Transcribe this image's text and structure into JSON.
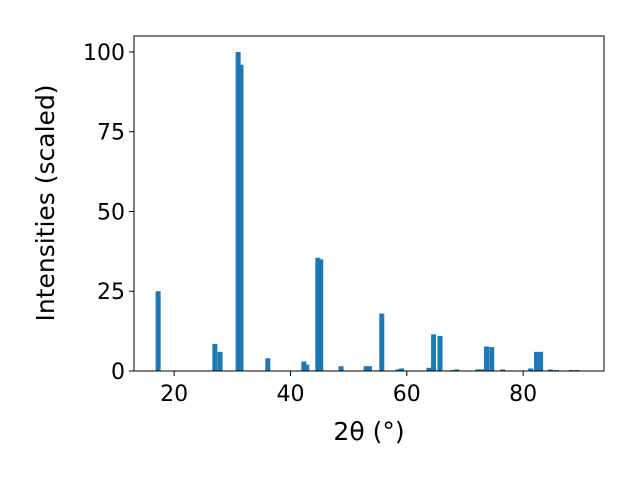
{
  "chart_data": {
    "type": "bar",
    "x_label": "2θ (°)",
    "y_label": "Intensities (scaled)",
    "x": [
      17.25,
      27.0,
      27.9,
      31.0,
      31.5,
      36.1,
      42.3,
      42.8,
      44.7,
      45.2,
      48.7,
      53.0,
      53.6,
      55.7,
      58.5,
      59.1,
      63.8,
      64.6,
      65.7,
      67.9,
      68.6,
      72.2,
      72.9,
      73.7,
      74.6,
      76.5,
      81.3,
      82.3,
      83.0,
      84.7,
      85.7,
      88.3,
      89.3
    ],
    "values": [
      25,
      8.5,
      6,
      100,
      96,
      4,
      3,
      2,
      35.5,
      35,
      1.5,
      1.5,
      1.5,
      18,
      0.5,
      0.8,
      1,
      11.5,
      11,
      0.3,
      0.5,
      0.5,
      0.5,
      7.7,
      7.5,
      0.5,
      0.8,
      6,
      6,
      0.5,
      0.3,
      0.3,
      0.3
    ],
    "color": "#1f77b4",
    "xlim": [
      13.1,
      93.9
    ],
    "xticks": [
      20,
      40,
      60,
      80
    ],
    "ylim": [
      0,
      105
    ],
    "yticks": [
      0,
      25,
      50,
      75,
      100
    ]
  }
}
